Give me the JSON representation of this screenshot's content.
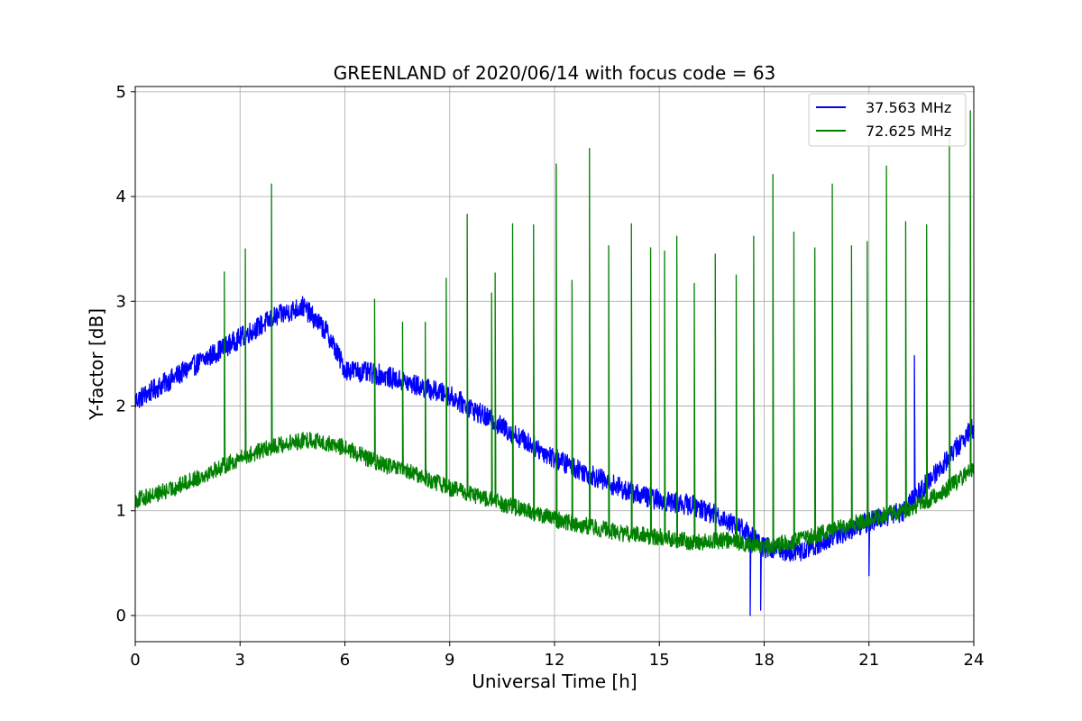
{
  "chart_data": {
    "type": "line",
    "title": "GREENLAND of 2020/06/14 with focus code = 63",
    "xlabel": "Universal Time [h]",
    "ylabel": "Y-factor [dB]",
    "xlim": [
      0,
      24
    ],
    "ylim": [
      -0.25,
      5.05
    ],
    "xticks": [
      0,
      3,
      6,
      9,
      12,
      15,
      18,
      21,
      24
    ],
    "yticks": [
      0,
      1,
      2,
      3,
      4,
      5
    ],
    "grid": true,
    "legend_position": "top-right",
    "series": [
      {
        "name": "37.563 MHz",
        "color": "#0000ff",
        "x": [
          0,
          1,
          2,
          3,
          4,
          4.8,
          5.5,
          6,
          7,
          8,
          9,
          10,
          11,
          12,
          13,
          14,
          15,
          16,
          17,
          17.5,
          18,
          19,
          20,
          21,
          22,
          23,
          24
        ],
        "y": [
          2.05,
          2.25,
          2.45,
          2.65,
          2.85,
          2.95,
          2.7,
          2.35,
          2.3,
          2.2,
          2.1,
          1.9,
          1.7,
          1.5,
          1.35,
          1.2,
          1.1,
          1.05,
          0.9,
          0.8,
          0.65,
          0.6,
          0.75,
          0.9,
          1.0,
          1.4,
          1.8
        ],
        "noise_amplitude": 0.1,
        "spikes": [
          [
            17.6,
            0.0
          ],
          [
            17.9,
            0.05
          ],
          [
            21.0,
            0.38
          ],
          [
            22.3,
            2.48
          ]
        ]
      },
      {
        "name": "72.625 MHz",
        "color": "#008000",
        "x": [
          0,
          1,
          2,
          3,
          4,
          5,
          6,
          7,
          8,
          9,
          10,
          11,
          12,
          13,
          14,
          15,
          16,
          17,
          18,
          19,
          20,
          21,
          22,
          23,
          24
        ],
        "y": [
          1.1,
          1.2,
          1.35,
          1.5,
          1.62,
          1.68,
          1.6,
          1.45,
          1.35,
          1.22,
          1.12,
          1.02,
          0.92,
          0.85,
          0.78,
          0.75,
          0.7,
          0.72,
          0.65,
          0.72,
          0.82,
          0.92,
          1.0,
          1.15,
          1.4
        ],
        "noise_amplitude": 0.08,
        "spikes": [
          [
            2.55,
            3.28
          ],
          [
            3.15,
            3.5
          ],
          [
            3.9,
            4.12
          ],
          [
            6.85,
            3.02
          ],
          [
            7.65,
            2.8
          ],
          [
            8.3,
            2.8
          ],
          [
            8.9,
            3.22
          ],
          [
            9.5,
            3.83
          ],
          [
            10.2,
            3.08
          ],
          [
            10.3,
            3.27
          ],
          [
            10.8,
            3.74
          ],
          [
            11.4,
            3.73
          ],
          [
            12.05,
            4.31
          ],
          [
            12.5,
            3.2
          ],
          [
            13.0,
            4.46
          ],
          [
            13.55,
            3.53
          ],
          [
            14.2,
            3.74
          ],
          [
            14.75,
            3.51
          ],
          [
            15.15,
            3.48
          ],
          [
            15.5,
            3.62
          ],
          [
            16.0,
            3.17
          ],
          [
            16.6,
            3.45
          ],
          [
            17.2,
            3.25
          ],
          [
            17.7,
            3.62
          ],
          [
            18.25,
            4.21
          ],
          [
            18.85,
            3.66
          ],
          [
            19.45,
            3.51
          ],
          [
            19.95,
            4.12
          ],
          [
            20.5,
            3.53
          ],
          [
            20.95,
            3.57
          ],
          [
            21.5,
            4.29
          ],
          [
            22.05,
            3.76
          ],
          [
            22.65,
            3.73
          ],
          [
            23.3,
            4.65
          ],
          [
            23.9,
            4.82
          ]
        ]
      }
    ]
  }
}
